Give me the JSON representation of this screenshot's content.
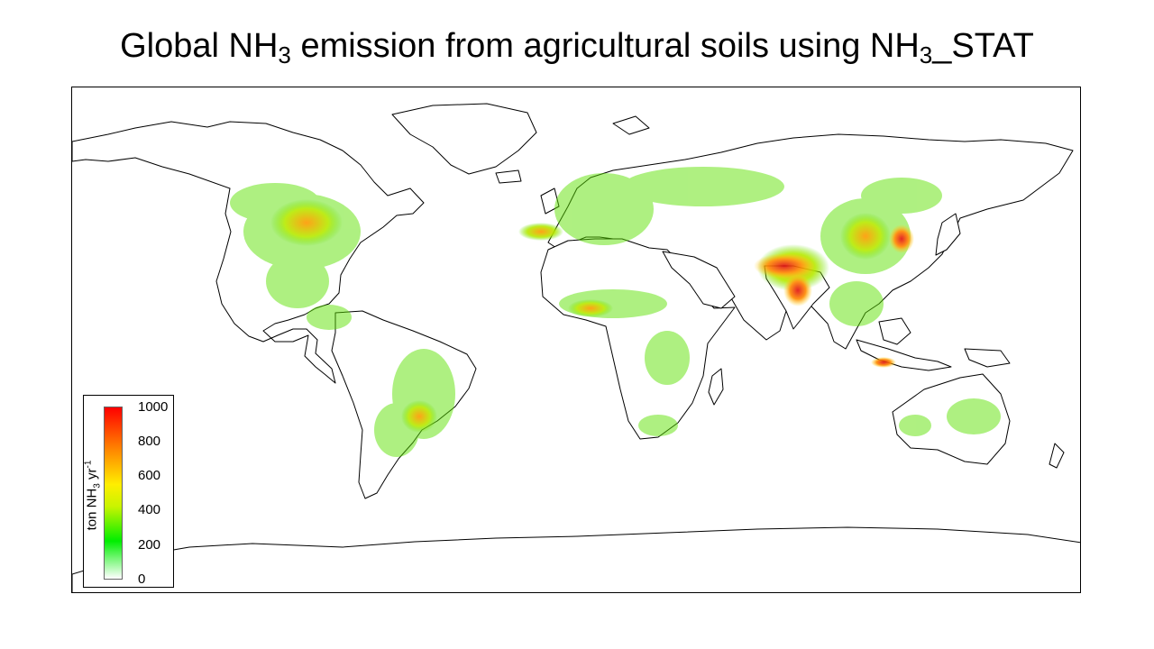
{
  "title": {
    "prefix": "Global NH",
    "sub1": "3",
    "middle": " emission from agricultural soils using NH",
    "sub2": "3",
    "suffix": "_STAT"
  },
  "legend": {
    "label_prefix": "ton NH",
    "label_sub": "3",
    "label_mid": " yr",
    "label_sup": "-1",
    "ticks": [
      "1000",
      "800",
      "600",
      "400",
      "200",
      "0"
    ],
    "colors": [
      "#ffffff",
      "#00ee00",
      "#c8f400",
      "#ffee00",
      "#ff8800",
      "#ff0000"
    ]
  }
}
